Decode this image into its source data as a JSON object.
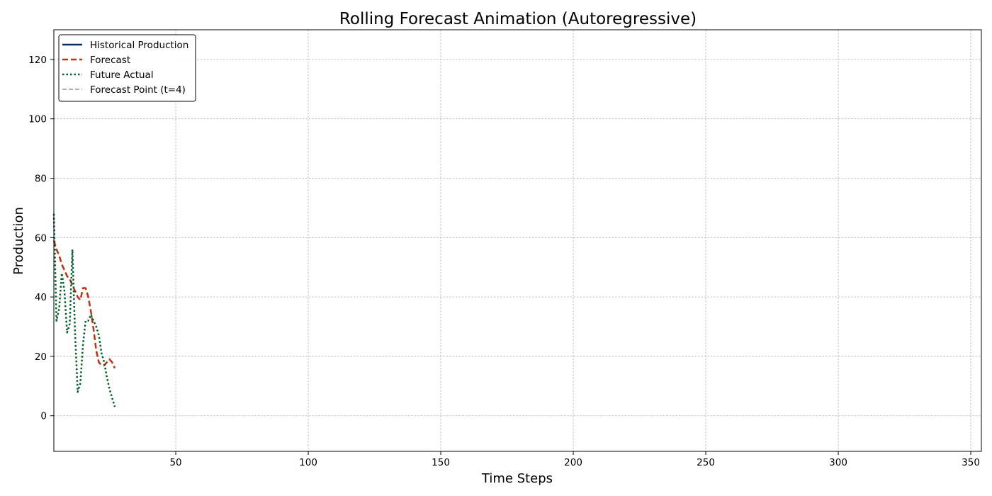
{
  "chart_data": {
    "type": "line",
    "title": "Rolling Forecast Animation (Autoregressive)",
    "xlabel": "Time Steps",
    "ylabel": "Production",
    "xlim": [
      4,
      354
    ],
    "ylim": [
      -12,
      130
    ],
    "xticks": [
      50,
      100,
      150,
      200,
      250,
      300,
      350
    ],
    "yticks": [
      0,
      20,
      40,
      60,
      80,
      100,
      120
    ],
    "grid": true,
    "legend_position": "upper-left",
    "series": [
      {
        "name": "Historical Production",
        "color": "#0b2d5b",
        "style": "solid",
        "x": [],
        "y": []
      },
      {
        "name": "Forecast",
        "color": "#c0310f",
        "style": "dashed",
        "x": [
          4,
          5,
          6,
          7,
          8,
          9,
          10,
          11,
          12,
          13,
          14,
          15,
          16,
          17,
          18,
          19,
          20,
          21,
          22,
          23,
          24,
          25,
          26,
          27
        ],
        "y": [
          59,
          56,
          54,
          51,
          49,
          47,
          46,
          44,
          42,
          40,
          39,
          43,
          43,
          40,
          35,
          29,
          22,
          18,
          17,
          17,
          18,
          19,
          18,
          16
        ]
      },
      {
        "name": "Future Actual",
        "color": "#00602a",
        "style": "dotted",
        "x": [
          4,
          5,
          6,
          7,
          8,
          9,
          10,
          11,
          12,
          13,
          14,
          15,
          16,
          17,
          18,
          19,
          20,
          21,
          22,
          23,
          24,
          25,
          26,
          27
        ],
        "y": [
          68,
          32,
          36,
          48,
          42,
          28,
          31,
          56,
          28,
          8,
          11,
          24,
          32,
          32,
          34,
          32,
          30,
          27,
          21,
          18,
          13,
          9,
          6,
          3
        ]
      },
      {
        "name": "Forecast Point (t=4)",
        "color": "#808080",
        "style": "dashed-vertical",
        "x_value": 4
      }
    ]
  }
}
